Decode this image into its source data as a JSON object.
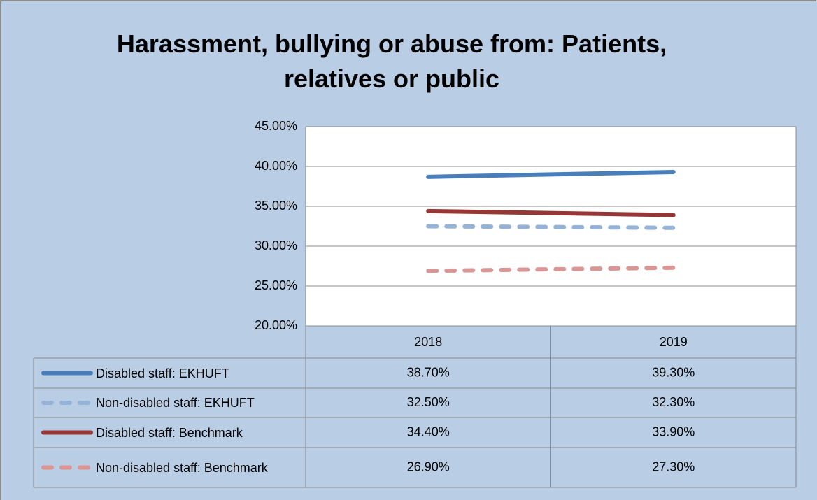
{
  "chart_data": {
    "type": "line",
    "title": "Harassment, bullying or abuse from: Patients, relatives or public",
    "categories": [
      "2018",
      "2019"
    ],
    "series": [
      {
        "name": "Disabled staff: EKHUFT",
        "color": "#4a7ebb",
        "dashed": false,
        "values": [
          38.7,
          39.3
        ],
        "value_labels": [
          "38.70%",
          "39.30%"
        ]
      },
      {
        "name": "Non-disabled staff: EKHUFT",
        "color": "#95b3d7",
        "dashed": true,
        "values": [
          32.5,
          32.3
        ],
        "value_labels": [
          "32.50%",
          "32.30%"
        ]
      },
      {
        "name": "Disabled staff: Benchmark",
        "color": "#953735",
        "dashed": false,
        "values": [
          34.4,
          33.9
        ],
        "value_labels": [
          "34.40%",
          "33.90%"
        ]
      },
      {
        "name": "Non-disabled staff: Benchmark",
        "color": "#d99694",
        "dashed": true,
        "values": [
          26.9,
          27.3
        ],
        "value_labels": [
          "26.90%",
          "27.30%"
        ]
      }
    ],
    "ylim": [
      20,
      45
    ],
    "yticks": [
      {
        "value": 20,
        "label": "20.00%"
      },
      {
        "value": 25,
        "label": "25.00%"
      },
      {
        "value": 30,
        "label": "30.00%"
      },
      {
        "value": 35,
        "label": "35.00%"
      },
      {
        "value": 40,
        "label": "40.00%"
      },
      {
        "value": 45,
        "label": "45.00%"
      }
    ],
    "grid": true
  }
}
